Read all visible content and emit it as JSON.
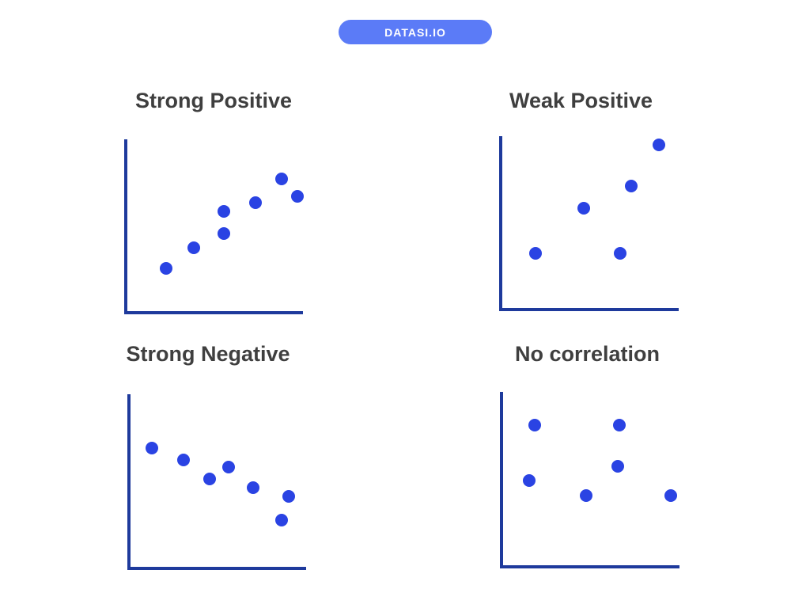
{
  "badge": {
    "label": "DATASI.IO",
    "bg_color": "#5b7bf7",
    "text_color": "#ffffff"
  },
  "colors": {
    "axis": "#1e3a9c",
    "dot": "#2a43e3",
    "title": "#3f3f3f",
    "background": "#ffffff"
  },
  "chart_data": [
    {
      "type": "scatter",
      "title": "Strong Positive",
      "points": [
        [
          2.2,
          2.5
        ],
        [
          3.8,
          3.7
        ],
        [
          5.5,
          4.5
        ],
        [
          5.5,
          5.8
        ],
        [
          7.3,
          6.3
        ],
        [
          8.8,
          7.7
        ],
        [
          9.7,
          6.7
        ]
      ],
      "xlim": [
        0,
        10
      ],
      "ylim": [
        0,
        10
      ],
      "xlabel": "",
      "ylabel": "",
      "grid": false,
      "legend": false
    },
    {
      "type": "scatter",
      "title": "Weak Positive",
      "points": [
        [
          1.9,
          3.2
        ],
        [
          4.6,
          5.8
        ],
        [
          6.7,
          3.2
        ],
        [
          7.3,
          7.1
        ],
        [
          8.9,
          9.5
        ]
      ],
      "xlim": [
        0,
        10
      ],
      "ylim": [
        0,
        10
      ],
      "xlabel": "",
      "ylabel": "",
      "grid": false,
      "legend": false
    },
    {
      "type": "scatter",
      "title": "Strong Negative",
      "points": [
        [
          1.2,
          6.9
        ],
        [
          3.0,
          6.2
        ],
        [
          4.5,
          5.1
        ],
        [
          5.6,
          5.8
        ],
        [
          7.0,
          4.6
        ],
        [
          9.0,
          4.1
        ],
        [
          8.6,
          2.7
        ]
      ],
      "xlim": [
        0,
        10
      ],
      "ylim": [
        0,
        10
      ],
      "xlabel": "",
      "ylabel": "",
      "grid": false,
      "legend": false
    },
    {
      "type": "scatter",
      "title": "No correlation",
      "points": [
        [
          1.8,
          8.1
        ],
        [
          6.6,
          8.1
        ],
        [
          6.5,
          5.7
        ],
        [
          1.5,
          4.9
        ],
        [
          4.7,
          4.0
        ],
        [
          9.5,
          4.0
        ]
      ],
      "xlim": [
        0,
        10
      ],
      "ylim": [
        0,
        10
      ],
      "xlabel": "",
      "ylabel": "",
      "grid": false,
      "legend": false
    }
  ]
}
